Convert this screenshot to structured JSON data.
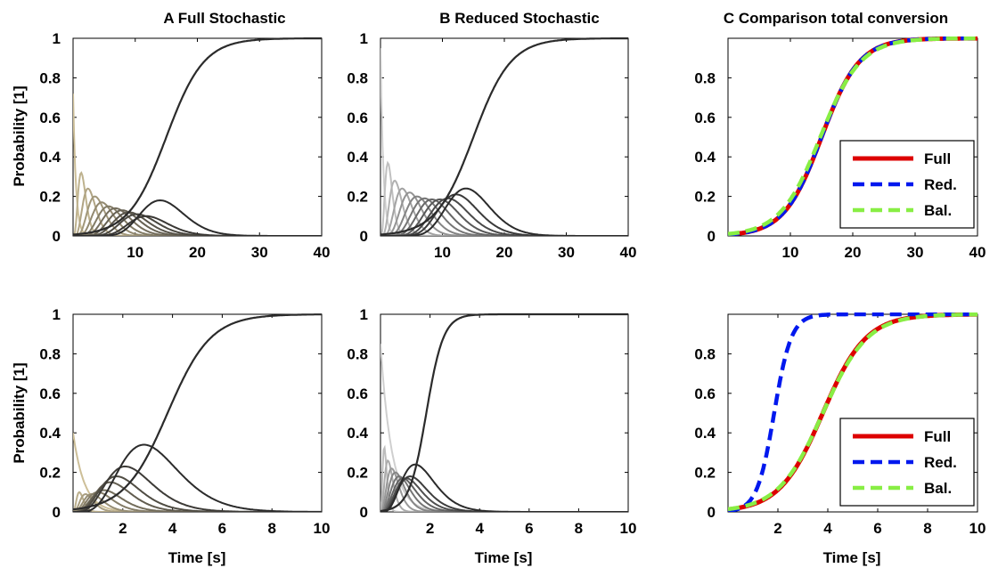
{
  "titles": {
    "A": "A Full Stochastic",
    "B": "B Reduced Stochastic",
    "C": "C Comparison total conversion"
  },
  "ylabel": "Probability [1]",
  "xlabel": "Time [s]",
  "colors": {
    "full": "#dd0000",
    "red": "#0018ee",
    "bal": "#88ee44",
    "tan_light": "#cdbf98",
    "tan_dark": "#2b2b2b",
    "gray_light": "#cfcfcf",
    "gray_dark": "#2b2b2b"
  },
  "chart_data": [
    {
      "id": "top-A",
      "type": "line",
      "title": "A Full Stochastic",
      "ylabel": "Probability [1]",
      "xlim": [
        0,
        40
      ],
      "ylim": [
        0,
        1
      ],
      "xticks": [
        10,
        20,
        30,
        40
      ],
      "yticks": [
        0,
        0.2,
        0.4,
        0.6,
        0.8,
        1
      ],
      "ytick_labels": [
        "0",
        "0.2",
        "0.4",
        "0.6",
        "0.8",
        "1"
      ],
      "palette": "tan",
      "series": [
        {
          "peak_t": 0,
          "peak_p": 0.72
        },
        {
          "peak_t": 1.3,
          "peak_p": 0.32
        },
        {
          "peak_t": 2.4,
          "peak_p": 0.24
        },
        {
          "peak_t": 3.5,
          "peak_p": 0.2
        },
        {
          "peak_t": 4.6,
          "peak_p": 0.17
        },
        {
          "peak_t": 5.7,
          "peak_p": 0.15
        },
        {
          "peak_t": 6.8,
          "peak_p": 0.14
        },
        {
          "peak_t": 7.9,
          "peak_p": 0.13
        },
        {
          "peak_t": 9,
          "peak_p": 0.12
        },
        {
          "peak_t": 10.3,
          "peak_p": 0.11
        },
        {
          "peak_t": 11.8,
          "peak_p": 0.1
        },
        {
          "peak_t": 14,
          "peak_p": 0.18
        }
      ],
      "conversion": {
        "t_half": 15,
        "k": 0.33
      }
    },
    {
      "id": "top-B",
      "type": "line",
      "title": "B Reduced Stochastic",
      "xlim": [
        0,
        40
      ],
      "ylim": [
        0,
        1
      ],
      "xticks": [
        10,
        20,
        30,
        40
      ],
      "yticks": [
        0,
        0.2,
        0.4,
        0.6,
        0.8,
        1
      ],
      "ytick_labels": [
        "0",
        "0.2",
        "0.4",
        "0.6",
        "0.8",
        "1"
      ],
      "palette": "gray",
      "series": [
        {
          "peak_t": 0,
          "peak_p": 0.95
        },
        {
          "peak_t": 1.2,
          "peak_p": 0.37
        },
        {
          "peak_t": 2.3,
          "peak_p": 0.28
        },
        {
          "peak_t": 3.5,
          "peak_p": 0.24
        },
        {
          "peak_t": 4.7,
          "peak_p": 0.22
        },
        {
          "peak_t": 5.9,
          "peak_p": 0.2
        },
        {
          "peak_t": 7.1,
          "peak_p": 0.19
        },
        {
          "peak_t": 8.3,
          "peak_p": 0.185
        },
        {
          "peak_t": 9.6,
          "peak_p": 0.185
        },
        {
          "peak_t": 10.9,
          "peak_p": 0.19
        },
        {
          "peak_t": 12.2,
          "peak_p": 0.21
        },
        {
          "peak_t": 13.8,
          "peak_p": 0.24
        }
      ],
      "conversion": {
        "t_half": 15,
        "k": 0.33
      }
    },
    {
      "id": "top-C",
      "type": "line",
      "title": "C Comparison total conversion",
      "xlim": [
        0,
        40
      ],
      "ylim": [
        0,
        1
      ],
      "xticks": [
        10,
        20,
        30,
        40
      ],
      "yticks": [
        0,
        0.2,
        0.4,
        0.6,
        0.8
      ],
      "ytick_labels": [
        "0",
        "0.2",
        "0.4",
        "0.6",
        "0.8"
      ],
      "legend": [
        "Full",
        "Red.",
        "Bal."
      ],
      "legend_placement": "bottom-right",
      "curves": {
        "full": {
          "t_half": 15,
          "k": 0.33
        },
        "red": {
          "t_half": 15,
          "k": 0.33
        },
        "bal": {
          "t_half": 14.8,
          "k": 0.31
        }
      }
    },
    {
      "id": "bottom-A",
      "type": "line",
      "ylabel": "Probability [1]",
      "xlabel": "Time [s]",
      "xlim": [
        0,
        10
      ],
      "ylim": [
        0,
        1
      ],
      "xticks": [
        2,
        4,
        6,
        8,
        10
      ],
      "yticks": [
        0,
        0.2,
        0.4,
        0.6,
        0.8,
        1
      ],
      "ytick_labels": [
        "0",
        "0.2",
        "0.4",
        "0.6",
        "0.8",
        "1"
      ],
      "palette": "tan",
      "series": [
        {
          "peak_t": 0,
          "peak_p": 0.4
        },
        {
          "peak_t": 0.25,
          "peak_p": 0.1
        },
        {
          "peak_t": 0.5,
          "peak_p": 0.09
        },
        {
          "peak_t": 0.75,
          "peak_p": 0.09
        },
        {
          "peak_t": 1.0,
          "peak_p": 0.1
        },
        {
          "peak_t": 1.25,
          "peak_p": 0.11
        },
        {
          "peak_t": 1.5,
          "peak_p": 0.15
        },
        {
          "peak_t": 1.75,
          "peak_p": 0.18
        },
        {
          "peak_t": 2.1,
          "peak_p": 0.23
        },
        {
          "peak_t": 2.85,
          "peak_p": 0.34
        }
      ],
      "conversion": {
        "t_half": 3.8,
        "k": 1.15
      }
    },
    {
      "id": "bottom-B",
      "type": "line",
      "xlabel": "Time [s]",
      "xlim": [
        0,
        10
      ],
      "ylim": [
        0,
        1
      ],
      "xticks": [
        2,
        4,
        6,
        8,
        10
      ],
      "yticks": [
        0,
        0.2,
        0.4,
        0.6,
        0.8,
        1
      ],
      "ytick_labels": [
        "0",
        "0.2",
        "0.4",
        "0.6",
        "0.8",
        "1"
      ],
      "palette": "gray",
      "series": [
        {
          "peak_t": 0,
          "peak_p": 0.85
        },
        {
          "peak_t": 0.15,
          "peak_p": 0.33
        },
        {
          "peak_t": 0.3,
          "peak_p": 0.26
        },
        {
          "peak_t": 0.45,
          "peak_p": 0.22
        },
        {
          "peak_t": 0.6,
          "peak_p": 0.2
        },
        {
          "peak_t": 0.75,
          "peak_p": 0.18
        },
        {
          "peak_t": 0.9,
          "peak_p": 0.17
        },
        {
          "peak_t": 1.05,
          "peak_p": 0.17
        },
        {
          "peak_t": 1.2,
          "peak_p": 0.18
        },
        {
          "peak_t": 1.4,
          "peak_p": 0.24
        }
      ],
      "conversion": {
        "t_half": 1.85,
        "k": 2.9
      }
    },
    {
      "id": "bottom-C",
      "type": "line",
      "xlabel": "Time [s]",
      "xlim": [
        0,
        10
      ],
      "ylim": [
        0,
        1
      ],
      "xticks": [
        2,
        4,
        6,
        8,
        10
      ],
      "yticks": [
        0,
        0.2,
        0.4,
        0.6,
        0.8
      ],
      "ytick_labels": [
        "0",
        "0.2",
        "0.4",
        "0.6",
        "0.8"
      ],
      "legend": [
        "Full",
        "Red.",
        "Bal."
      ],
      "legend_placement": "bottom-right",
      "curves": {
        "full": {
          "t_half": 3.8,
          "k": 1.15
        },
        "red": {
          "t_half": 1.85,
          "k": 2.9
        },
        "bal": {
          "t_half": 3.8,
          "k": 1.12
        }
      }
    }
  ]
}
